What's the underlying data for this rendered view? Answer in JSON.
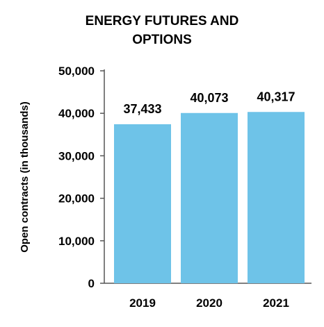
{
  "chart_data": {
    "type": "bar",
    "title_lines": [
      "ENERGY FUTURES AND",
      "OPTIONS"
    ],
    "ylabel": "Open contracts (in thousands)",
    "xlabel": "",
    "categories": [
      "2019",
      "2020",
      "2021"
    ],
    "values": [
      37433,
      40073,
      40317
    ],
    "value_labels": [
      "37,433",
      "40,073",
      "40,317"
    ],
    "ylim": [
      0,
      50000
    ],
    "yticks": [
      0,
      10000,
      20000,
      30000,
      40000,
      50000
    ],
    "ytick_labels": [
      "0",
      "10,000",
      "20,000",
      "30,000",
      "40,000",
      "50,000"
    ],
    "bar_color": "#6ec3e8",
    "grid": false,
    "legend": "none"
  }
}
